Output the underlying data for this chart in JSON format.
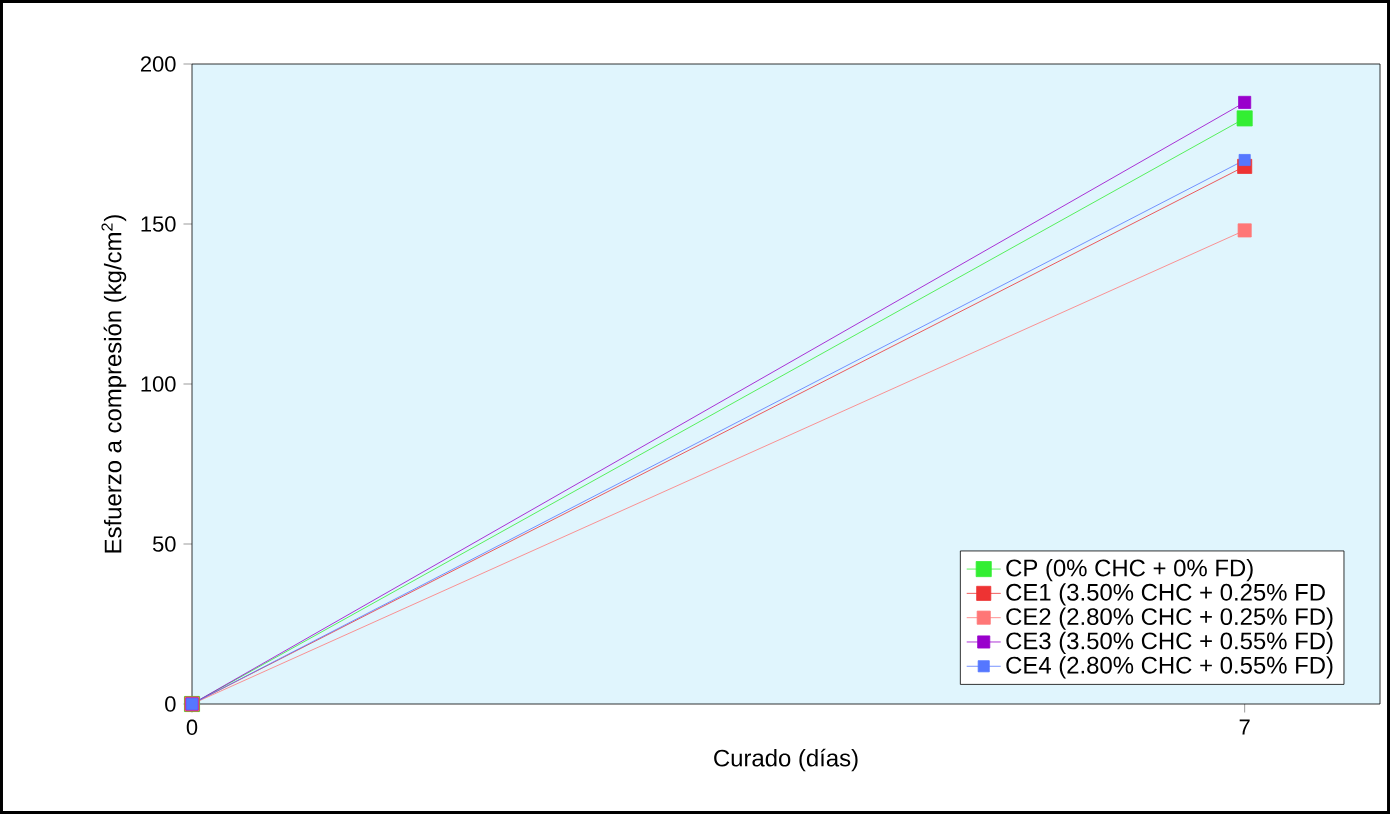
{
  "chart_data": {
    "type": "line",
    "xlabel": "Curado (días)",
    "ylabel": "Esfuerzo a compresión (kg/cm$^{2}$)",
    "x": [
      0,
      7
    ],
    "xlim": [
      0,
      7.9
    ],
    "ylim": [
      0,
      200
    ],
    "xticks": [
      0,
      7
    ],
    "yticks": [
      0,
      50,
      100,
      150,
      200
    ],
    "marker": "square",
    "legend": "bottom right",
    "grid": false,
    "series": [
      {
        "name": "CP (0% CHC + 0% FD)",
        "color": "#33ee33",
        "values": [
          0,
          183
        ]
      },
      {
        "name": "CE1 (3.50% CHC + 0.25% FD",
        "color": "#ee3333",
        "values": [
          0,
          168
        ]
      },
      {
        "name": "CE2 (2.80% CHC + 0.25% FD)",
        "color": "#ff7777",
        "values": [
          0,
          148
        ]
      },
      {
        "name": "CE3 (3.50% CHC + 0.55% FD)",
        "color": "#9900cc",
        "values": [
          0,
          188
        ]
      },
      {
        "name": "CE4 (2.80% CHC + 0.55% FD)",
        "color": "#5577ff",
        "values": [
          0,
          170
        ]
      }
    ]
  }
}
